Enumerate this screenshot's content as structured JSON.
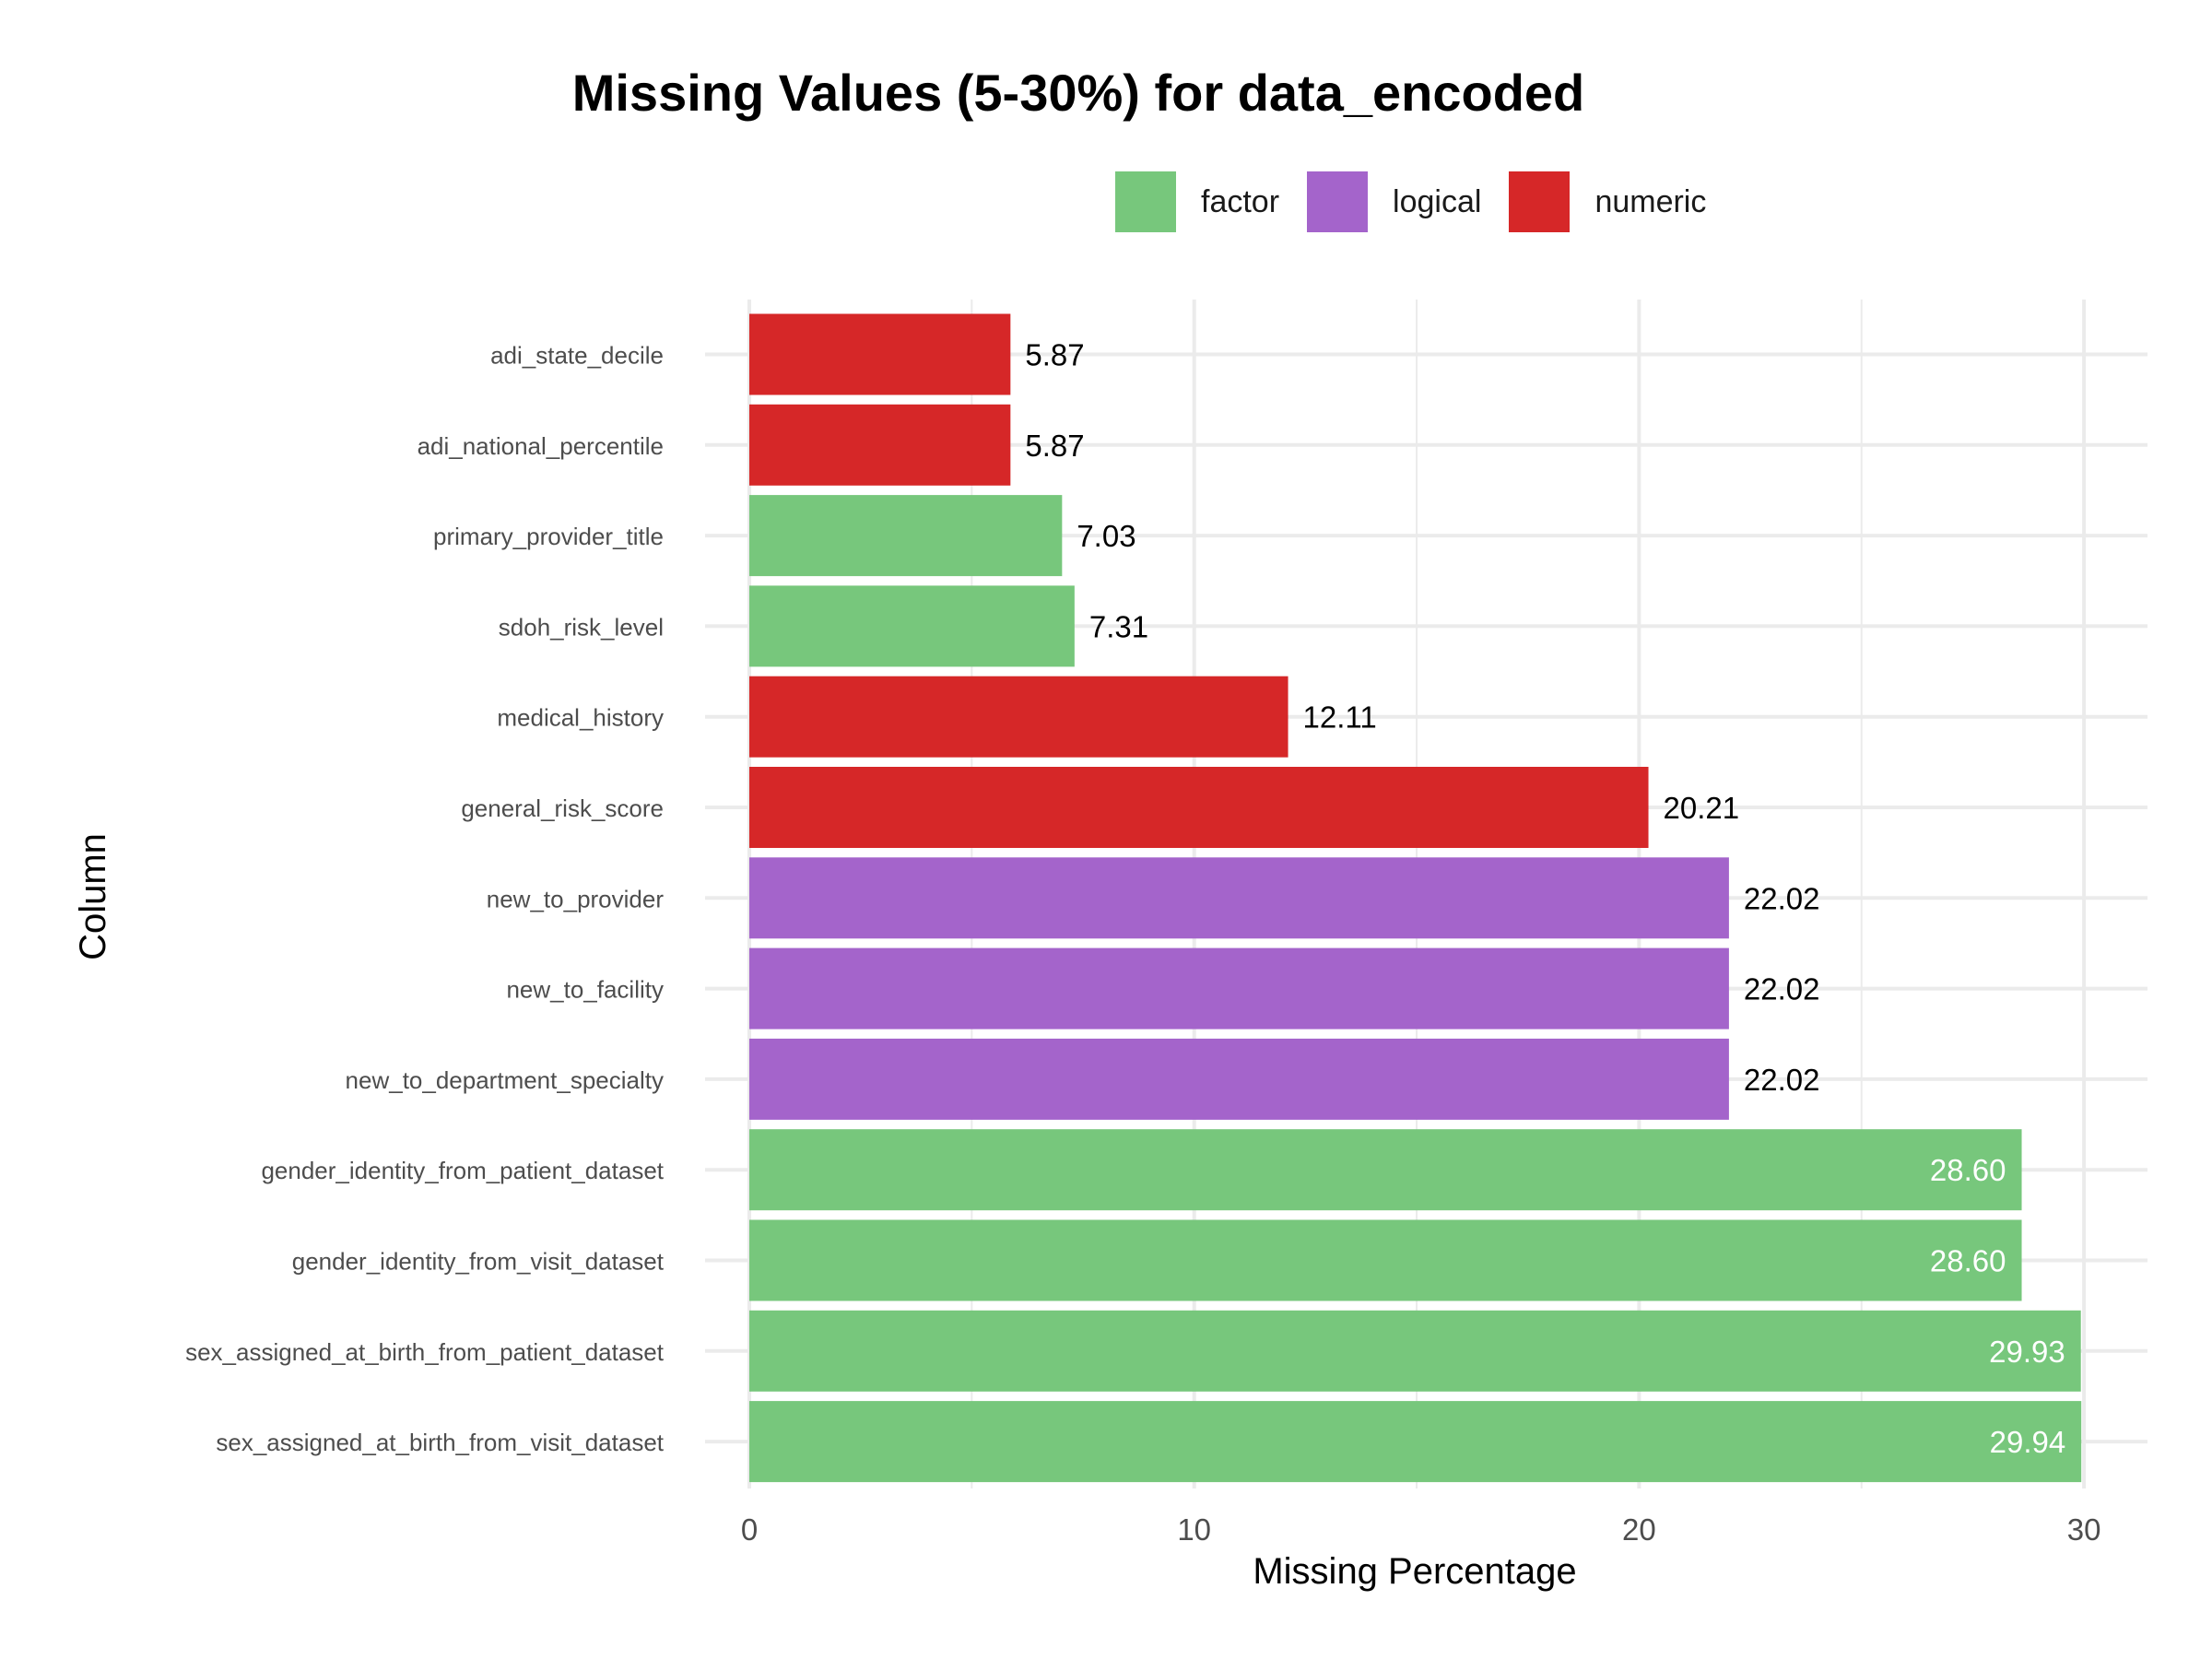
{
  "chart_data": {
    "type": "bar",
    "orientation": "horizontal",
    "title": "Missing Values (5-30%) for data_encoded",
    "xlabel": "Missing Percentage",
    "ylabel": "Column",
    "xlim": [
      0,
      31.5
    ],
    "x_ticks": [
      0,
      10,
      20,
      30
    ],
    "grid": true,
    "legend_position": "top",
    "legend": [
      {
        "name": "factor",
        "color": "#77c77c"
      },
      {
        "name": "logical",
        "color": "#a464cb"
      },
      {
        "name": "numeric",
        "color": "#d62728"
      }
    ],
    "bars": [
      {
        "label": "adi_state_decile",
        "value": 5.87,
        "type": "numeric",
        "value_label": "5.87"
      },
      {
        "label": "adi_national_percentile",
        "value": 5.87,
        "type": "numeric",
        "value_label": "5.87"
      },
      {
        "label": "primary_provider_title",
        "value": 7.03,
        "type": "factor",
        "value_label": "7.03"
      },
      {
        "label": "sdoh_risk_level",
        "value": 7.31,
        "type": "factor",
        "value_label": "7.31"
      },
      {
        "label": "medical_history",
        "value": 12.11,
        "type": "numeric",
        "value_label": "12.11"
      },
      {
        "label": "general_risk_score",
        "value": 20.21,
        "type": "numeric",
        "value_label": "20.21"
      },
      {
        "label": "new_to_provider",
        "value": 22.02,
        "type": "logical",
        "value_label": "22.02"
      },
      {
        "label": "new_to_facility",
        "value": 22.02,
        "type": "logical",
        "value_label": "22.02"
      },
      {
        "label": "new_to_department_specialty",
        "value": 22.02,
        "type": "logical",
        "value_label": "22.02"
      },
      {
        "label": "gender_identity_from_patient_dataset",
        "value": 28.6,
        "type": "factor",
        "value_label": "28.60"
      },
      {
        "label": "gender_identity_from_visit_dataset",
        "value": 28.6,
        "type": "factor",
        "value_label": "28.60"
      },
      {
        "label": "sex_assigned_at_birth_from_patient_dataset",
        "value": 29.93,
        "type": "factor",
        "value_label": "29.93"
      },
      {
        "label": "sex_assigned_at_birth_from_visit_dataset",
        "value": 29.94,
        "type": "factor",
        "value_label": "29.94"
      }
    ]
  }
}
